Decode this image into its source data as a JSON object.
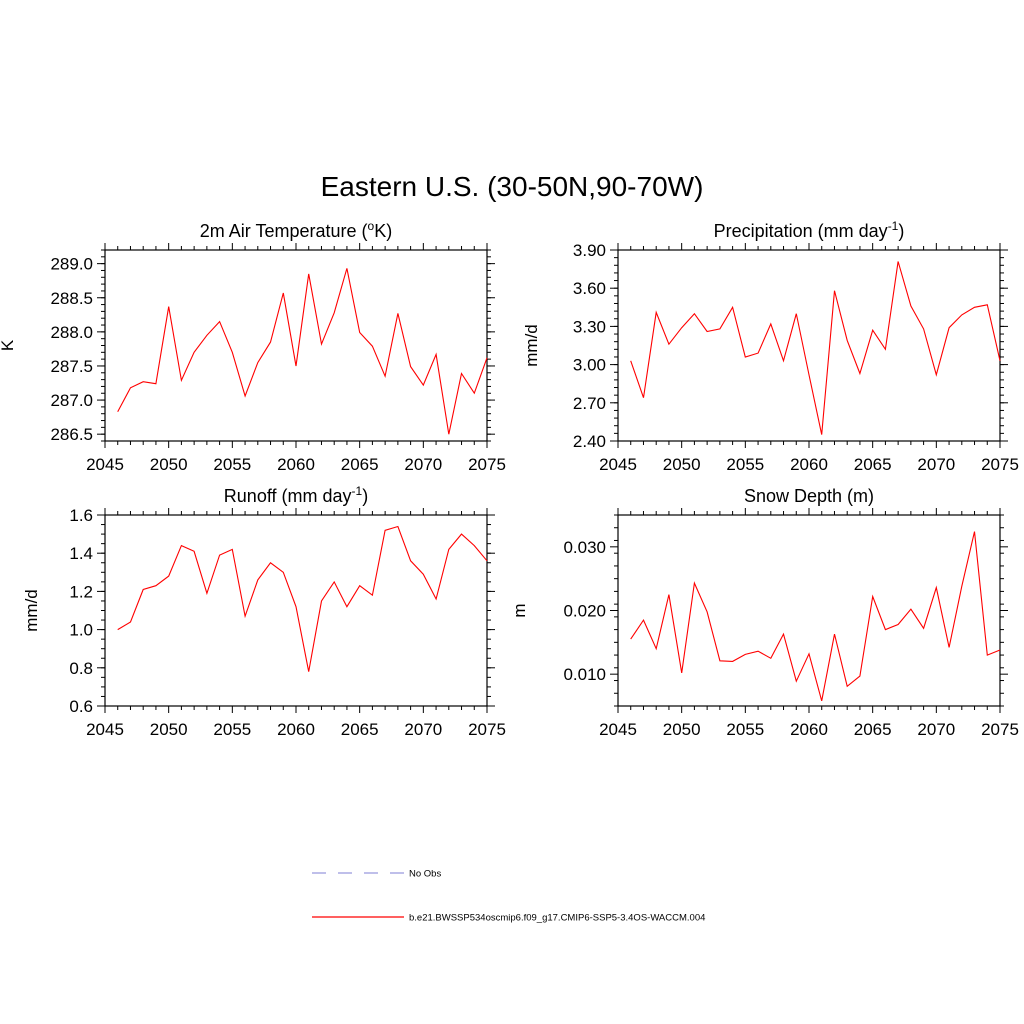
{
  "figure": {
    "title": "Eastern U.S. (30-50N,90-70W)"
  },
  "colors": {
    "model_line": "#ff0000",
    "obs_line": "#9999dd",
    "axis": "#000000"
  },
  "legend": {
    "position": "bottom-center",
    "items": [
      {
        "label": "No Obs",
        "style": "dashed",
        "color": "#9999dd"
      },
      {
        "label": "b.e21.BWSSP534oscmip6.f09_g17.CMIP6-SSP5-3.4OS-WACCM.004",
        "style": "solid",
        "color": "#ff0000"
      }
    ]
  },
  "chart_data": [
    {
      "type": "line",
      "title_main": "2m Air Temperature (",
      "title_sup": "o",
      "title_tail": "K)",
      "ylabel": "K",
      "xlim": [
        2045,
        2075
      ],
      "ylim": [
        286.4,
        289.2
      ],
      "x_ticks": [
        2045,
        2050,
        2055,
        2060,
        2065,
        2070,
        2075
      ],
      "y_ticks": [
        286.5,
        287.0,
        287.5,
        288.0,
        288.5,
        289.0
      ],
      "y_tick_labels": [
        "286.5",
        "287.0",
        "287.5",
        "288.0",
        "288.5",
        "289.0"
      ],
      "y_minor_step": 0.1,
      "x": [
        2046,
        2047,
        2048,
        2049,
        2050,
        2051,
        2052,
        2053,
        2054,
        2055,
        2056,
        2057,
        2058,
        2059,
        2060,
        2061,
        2062,
        2063,
        2064,
        2065,
        2066,
        2067,
        2068,
        2069,
        2070,
        2071,
        2072,
        2073,
        2074,
        2075
      ],
      "values": [
        286.83,
        287.18,
        287.27,
        287.24,
        288.37,
        287.29,
        287.7,
        287.95,
        288.15,
        287.7,
        287.06,
        287.55,
        287.85,
        288.57,
        287.5,
        288.85,
        287.82,
        288.28,
        288.93,
        287.99,
        287.79,
        287.35,
        288.27,
        287.49,
        287.22,
        287.67,
        286.5,
        287.39,
        287.1,
        287.62
      ]
    },
    {
      "type": "line",
      "title_main": "Precipitation (mm day",
      "title_sup": "-1",
      "title_tail": ")",
      "ylabel": "mm/d",
      "xlim": [
        2045,
        2075
      ],
      "ylim": [
        2.4,
        3.9
      ],
      "x_ticks": [
        2045,
        2050,
        2055,
        2060,
        2065,
        2070,
        2075
      ],
      "y_ticks": [
        2.4,
        2.7,
        3.0,
        3.3,
        3.6,
        3.9
      ],
      "y_tick_labels": [
        "2.40",
        "2.70",
        "3.00",
        "3.30",
        "3.60",
        "3.90"
      ],
      "y_minor_step": 0.06,
      "x": [
        2046,
        2047,
        2048,
        2049,
        2050,
        2051,
        2052,
        2053,
        2054,
        2055,
        2056,
        2057,
        2058,
        2059,
        2060,
        2061,
        2062,
        2063,
        2064,
        2065,
        2066,
        2067,
        2068,
        2069,
        2070,
        2071,
        2072,
        2073,
        2074,
        2075
      ],
      "values": [
        3.03,
        2.74,
        3.41,
        3.16,
        3.29,
        3.4,
        3.26,
        3.28,
        3.45,
        3.06,
        3.09,
        3.32,
        3.03,
        3.4,
        2.92,
        2.45,
        3.58,
        3.19,
        2.93,
        3.27,
        3.12,
        3.81,
        3.46,
        3.28,
        2.92,
        3.29,
        3.39,
        3.45,
        3.47,
        3.03
      ]
    },
    {
      "type": "line",
      "title_main": "Runoff (mm day",
      "title_sup": "-1",
      "title_tail": ")",
      "ylabel": "mm/d",
      "xlim": [
        2045,
        2075
      ],
      "ylim": [
        0.6,
        1.6
      ],
      "x_ticks": [
        2045,
        2050,
        2055,
        2060,
        2065,
        2070,
        2075
      ],
      "y_ticks": [
        0.6,
        0.8,
        1.0,
        1.2,
        1.4,
        1.6
      ],
      "y_tick_labels": [
        "0.6",
        "0.8",
        "1.0",
        "1.2",
        "1.4",
        "1.6"
      ],
      "y_minor_step": 0.05,
      "x": [
        2046,
        2047,
        2048,
        2049,
        2050,
        2051,
        2052,
        2053,
        2054,
        2055,
        2056,
        2057,
        2058,
        2059,
        2060,
        2061,
        2062,
        2063,
        2064,
        2065,
        2066,
        2067,
        2068,
        2069,
        2070,
        2071,
        2072,
        2073,
        2074,
        2075
      ],
      "values": [
        1.0,
        1.04,
        1.21,
        1.23,
        1.28,
        1.44,
        1.41,
        1.19,
        1.39,
        1.42,
        1.07,
        1.26,
        1.35,
        1.3,
        1.12,
        0.78,
        1.15,
        1.25,
        1.12,
        1.23,
        1.18,
        1.52,
        1.54,
        1.36,
        1.29,
        1.16,
        1.42,
        1.5,
        1.44,
        1.36
      ]
    },
    {
      "type": "line",
      "title_main": "Snow Depth (m)",
      "title_sup": "",
      "title_tail": "",
      "ylabel": "m",
      "xlim": [
        2045,
        2075
      ],
      "ylim": [
        0.005,
        0.035
      ],
      "x_ticks": [
        2045,
        2050,
        2055,
        2060,
        2065,
        2070,
        2075
      ],
      "y_ticks": [
        0.01,
        0.02,
        0.03
      ],
      "y_tick_labels": [
        "0.010",
        "0.020",
        "0.030"
      ],
      "y_minor_step": 0.002,
      "x": [
        2046,
        2047,
        2048,
        2049,
        2050,
        2051,
        2052,
        2053,
        2054,
        2055,
        2056,
        2057,
        2058,
        2059,
        2060,
        2061,
        2062,
        2063,
        2064,
        2065,
        2066,
        2067,
        2068,
        2069,
        2070,
        2071,
        2072,
        2073,
        2074,
        2075
      ],
      "values": [
        0.0155,
        0.0185,
        0.014,
        0.0225,
        0.0102,
        0.0243,
        0.0198,
        0.0121,
        0.012,
        0.0131,
        0.0136,
        0.0125,
        0.0163,
        0.0089,
        0.0132,
        0.0058,
        0.0163,
        0.0081,
        0.0097,
        0.0222,
        0.017,
        0.0178,
        0.0202,
        0.0172,
        0.0236,
        0.0142,
        0.0238,
        0.0324,
        0.013,
        0.0138
      ]
    }
  ]
}
